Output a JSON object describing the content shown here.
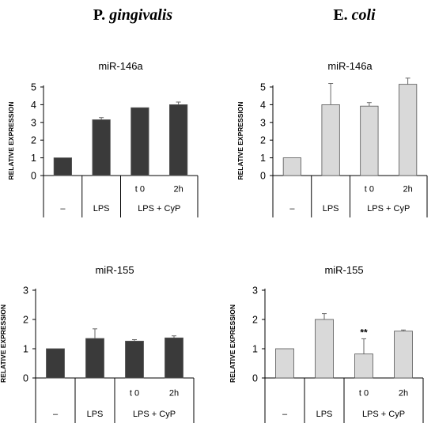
{
  "column_titles": [
    {
      "prefix": "P. ",
      "italic": "gingivalis"
    },
    {
      "prefix": "E. ",
      "italic": "coli"
    }
  ],
  "chart_data": [
    {
      "type": "bar",
      "title": "miR-146a",
      "ylabel": "RELATIVE EXPRESSION",
      "ylim": [
        0,
        5
      ],
      "yticks": [
        0,
        1,
        2,
        3,
        4,
        5
      ],
      "categories": [
        "–",
        "LPS",
        "t 0",
        "2h"
      ],
      "values": [
        1.0,
        3.15,
        3.83,
        4.0
      ],
      "errors": [
        0,
        0.12,
        0,
        0.15
      ],
      "group_labels": [
        "–",
        "LPS",
        "LPS + CyP"
      ],
      "bar_color": "#3a3a3a",
      "annotations": [
        "",
        "",
        "",
        ""
      ]
    },
    {
      "type": "bar",
      "title": "miR-146a",
      "ylabel": "RELATIVE EXPRESSION",
      "ylim": [
        0,
        5
      ],
      "yticks": [
        0,
        1,
        2,
        3,
        4,
        5
      ],
      "categories": [
        "–",
        "LPS",
        "t 0",
        "2h"
      ],
      "values": [
        1.0,
        4.0,
        3.92,
        5.15
      ],
      "errors": [
        0,
        1.2,
        0.2,
        0.35
      ],
      "group_labels": [
        "–",
        "LPS",
        "LPS + CyP"
      ],
      "bar_color": "#d9d9d9",
      "annotations": [
        "",
        "",
        "",
        ""
      ]
    },
    {
      "type": "bar",
      "title": "miR-155",
      "ylabel": "RELATIVE EXPRESSION",
      "ylim": [
        0,
        3
      ],
      "yticks": [
        0,
        1,
        2,
        3
      ],
      "categories": [
        "–",
        "LPS",
        "t 0",
        "2h"
      ],
      "values": [
        1.0,
        1.35,
        1.26,
        1.37
      ],
      "errors": [
        0,
        0.33,
        0.05,
        0.07
      ],
      "group_labels": [
        "–",
        "LPS",
        "LPS + CyP"
      ],
      "bar_color": "#3a3a3a",
      "annotations": [
        "",
        "",
        "",
        ""
      ]
    },
    {
      "type": "bar",
      "title": "miR-155",
      "ylabel": "RELATIVE EXPRESSION",
      "ylim": [
        0,
        3
      ],
      "yticks": [
        0,
        1,
        2,
        3
      ],
      "categories": [
        "–",
        "LPS",
        "t 0",
        "2h"
      ],
      "values": [
        1.0,
        2.0,
        0.82,
        1.6
      ],
      "errors": [
        0,
        0.2,
        0.52,
        0.04
      ],
      "group_labels": [
        "–",
        "LPS",
        "LPS + CyP"
      ],
      "bar_color": "#d9d9d9",
      "annotations": [
        "",
        "",
        "**",
        ""
      ]
    }
  ]
}
